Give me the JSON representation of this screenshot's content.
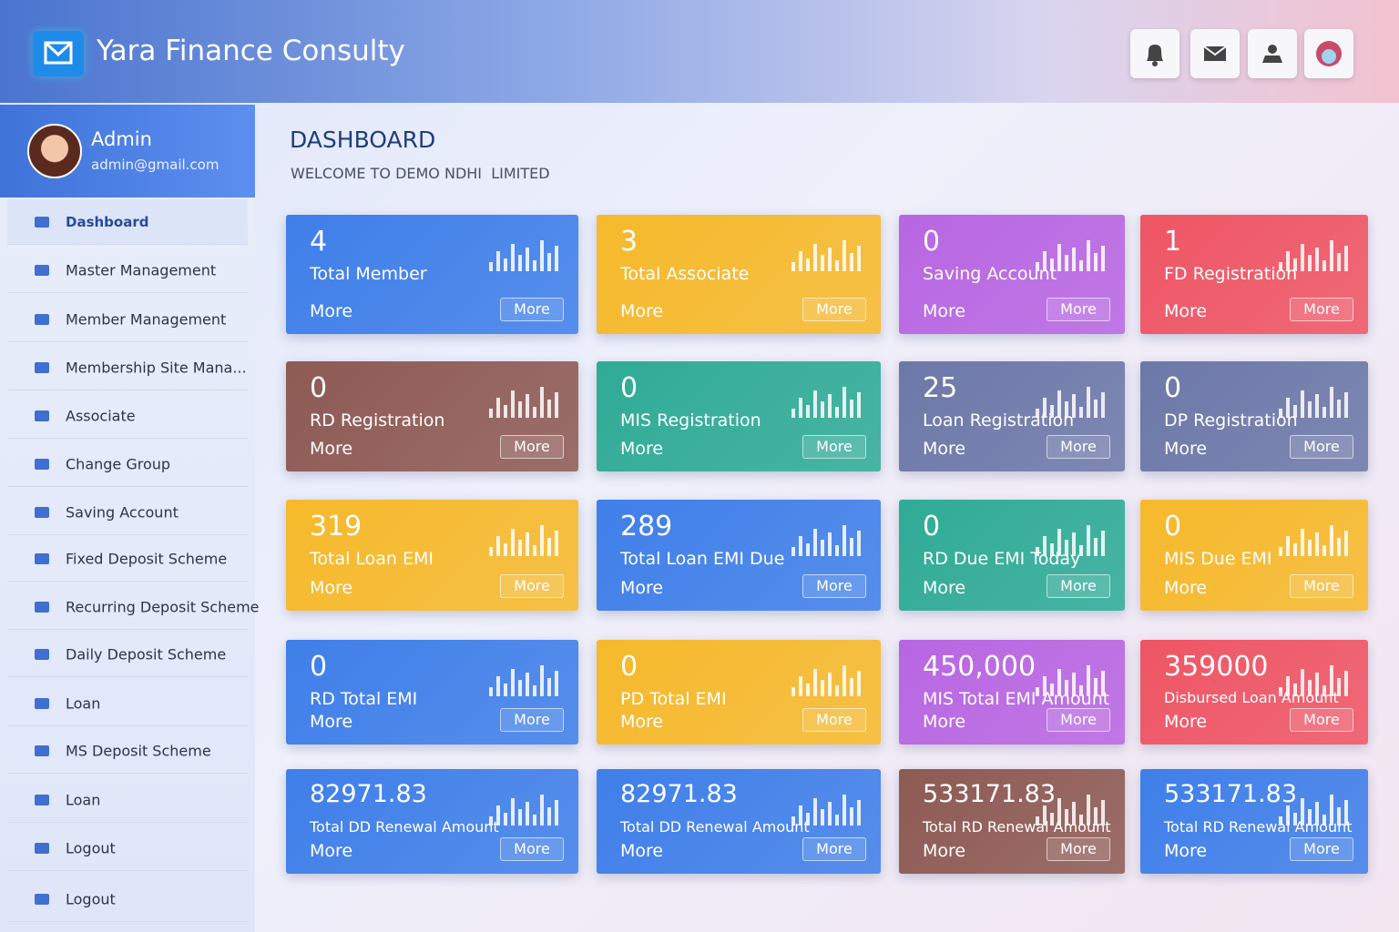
{
  "header": {
    "title": "Yara Finance Consulty"
  },
  "user": {
    "name": "Admin",
    "email": "admin@gmail.com"
  },
  "sidebar": {
    "items": [
      "Dashboard",
      "Master Management",
      "Member Management",
      "Membership Site Mana...",
      "Associate",
      "Change Group",
      "Saving Account",
      "Fixed Deposit Scheme",
      "Recurring Deposit Scheme",
      "Daily Deposit Scheme",
      "Loan",
      "MS Deposit Scheme",
      "Loan",
      "Logout",
      "Logout"
    ]
  },
  "page": {
    "title": "DASHBOARD",
    "subtitle": "WELCOME TO DEMO NDHI  LIMITED"
  },
  "cards": [
    {
      "value": "4",
      "label": "Total Member",
      "link": "More",
      "button": "More",
      "color": "#3f7fe9"
    },
    {
      "value": "3",
      "label": "Total Associate",
      "link": "More",
      "button": "More",
      "color": "#f6b92b"
    },
    {
      "value": "0",
      "label": "Saving Account",
      "link": "More",
      "button": "More",
      "color": "#b866e2"
    },
    {
      "value": "1",
      "label": "FD Registration",
      "link": "More",
      "button": "More",
      "color": "#ef5564"
    },
    {
      "value": "0",
      "label": "RD Registration",
      "link": "More",
      "button": "More",
      "color": "#8e5a54"
    },
    {
      "value": "0",
      "label": "MIS Registration",
      "link": "More",
      "button": "More",
      "color": "#2fab96"
    },
    {
      "value": "25",
      "label": "Loan Registration",
      "link": "More",
      "button": "More",
      "color": "#6c78a8"
    },
    {
      "value": "0",
      "label": "DP Registration",
      "link": "More",
      "button": "More",
      "color": "#6c78a8"
    },
    {
      "value": "319",
      "label": "Total Loan EMI",
      "link": "More",
      "button": "More",
      "color": "#f6b92b"
    },
    {
      "value": "289",
      "label": "Total Loan EMI Due",
      "link": "More",
      "button": "More",
      "color": "#3f7fe9"
    },
    {
      "value": "0",
      "label": "RD Due EMI Today",
      "link": "More",
      "button": "More",
      "color": "#2fab96"
    },
    {
      "value": "0",
      "label": "MIS Due EMI",
      "link": "More",
      "button": "More",
      "color": "#f6b92b"
    },
    {
      "value": "0",
      "label": "RD Total EMI",
      "link": "More",
      "button": "More",
      "color": "#3f7fe9"
    },
    {
      "value": "0",
      "label": "PD Total EMI",
      "link": "More",
      "button": "More",
      "color": "#f6b92b"
    },
    {
      "value": "450,000",
      "label": "MIS Total EMI Amount",
      "link": "More",
      "button": "More",
      "color": "#b866e2"
    },
    {
      "value": "359000",
      "label": "Disbursed Loan Amount",
      "link": "More",
      "button": "More",
      "color": "#ef5564"
    },
    {
      "value": "82971.83",
      "label": "Total DD Renewal Amount",
      "link": "More",
      "button": "More",
      "color": "#3f7fe9"
    },
    {
      "value": "82971.83",
      "label": "Total DD Renewal Amount",
      "link": "More",
      "button": "More",
      "color": "#3f7fe9"
    },
    {
      "value": "533171.83",
      "label": "Total RD Renewal Amount",
      "link": "More",
      "button": "More",
      "color": "#8e5a54"
    },
    {
      "value": "533171.83",
      "label": "Total RD Renewal Amount",
      "link": "More",
      "button": "More",
      "color": "#3f7fe9"
    }
  ]
}
